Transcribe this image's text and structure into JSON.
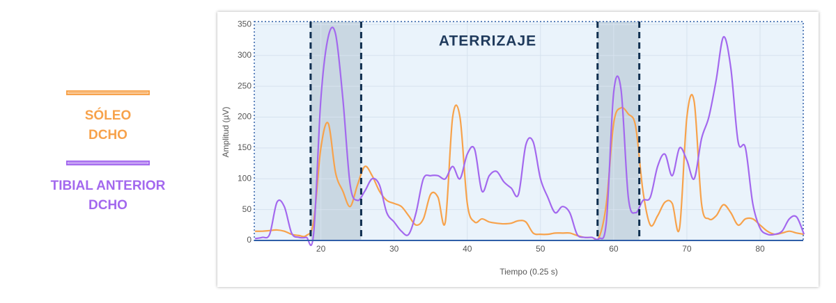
{
  "chart_data": {
    "type": "line",
    "annotation": "ATERRIZAJE",
    "x_label": "Tiempo (0.25 s)",
    "y_label": "Amplitud (µV)",
    "x": [
      11,
      12,
      13,
      14,
      15,
      16,
      17,
      18,
      19,
      20,
      21,
      22,
      23,
      24,
      25,
      26,
      27,
      28,
      29,
      30,
      31,
      32,
      33,
      34,
      35,
      36,
      37,
      38,
      39,
      40,
      41,
      42,
      43,
      44,
      45,
      46,
      47,
      48,
      49,
      50,
      51,
      52,
      53,
      54,
      55,
      56,
      57,
      58,
      59,
      60,
      61,
      62,
      63,
      64,
      65,
      66,
      67,
      68,
      69,
      70,
      71,
      72,
      73,
      74,
      75,
      76,
      77,
      78,
      79,
      80,
      81,
      82,
      83,
      84,
      85,
      86
    ],
    "series": [
      {
        "name": "SÓLEO DCHO",
        "color": "#f7a24b",
        "values": [
          15,
          15,
          16,
          17,
          15,
          10,
          8,
          8,
          30,
          150,
          190,
          110,
          80,
          55,
          90,
          120,
          105,
          80,
          65,
          60,
          55,
          40,
          25,
          35,
          75,
          70,
          30,
          200,
          200,
          60,
          30,
          35,
          30,
          28,
          27,
          28,
          32,
          30,
          12,
          10,
          10,
          12,
          12,
          12,
          8,
          5,
          5,
          5,
          60,
          190,
          215,
          205,
          185,
          80,
          25,
          40,
          62,
          60,
          20,
          200,
          225,
          60,
          35,
          40,
          58,
          45,
          25,
          35,
          35,
          25,
          15,
          10,
          12,
          15,
          12,
          10
        ]
      },
      {
        "name": "TIBIAL ANTERIOR DCHO",
        "color": "#a368ee",
        "values": [
          3,
          5,
          10,
          62,
          55,
          12,
          5,
          5,
          10,
          230,
          330,
          335,
          230,
          90,
          65,
          80,
          100,
          90,
          45,
          30,
          15,
          10,
          45,
          100,
          105,
          105,
          100,
          120,
          100,
          140,
          148,
          80,
          105,
          112,
          95,
          85,
          75,
          155,
          160,
          100,
          70,
          45,
          55,
          45,
          10,
          5,
          5,
          3,
          30,
          240,
          245,
          70,
          45,
          65,
          70,
          120,
          140,
          105,
          150,
          130,
          100,
          165,
          200,
          260,
          330,
          280,
          160,
          150,
          60,
          20,
          10,
          10,
          15,
          35,
          38,
          10
        ]
      }
    ],
    "highlight_regions": [
      [
        18.6,
        25.5
      ],
      [
        57.8,
        63.5
      ]
    ],
    "xlim": [
      10.9,
      85.9
    ],
    "xticks": [
      20,
      30,
      40,
      50,
      60,
      70,
      80
    ],
    "ylim": [
      0,
      355
    ],
    "yticks": [
      0,
      50,
      100,
      150,
      200,
      250,
      300,
      350
    ],
    "grid": true
  }
}
